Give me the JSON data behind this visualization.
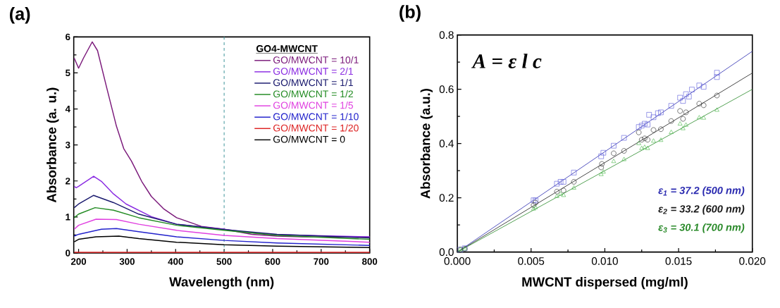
{
  "chart_data": [
    {
      "type": "line",
      "title": "(a)",
      "xlabel": "Wavelength (nm)",
      "ylabel": "Absorbance (a. u.)",
      "legend_title": "GO4-MWCNT",
      "legend": "top right",
      "xlim": [
        190,
        800
      ],
      "ylim": [
        0,
        6
      ],
      "xticks": [
        200,
        300,
        400,
        500,
        600,
        700,
        800
      ],
      "yticks": [
        0,
        1,
        2,
        3,
        4,
        5,
        6
      ],
      "ref_lines": [
        {
          "axis": "x",
          "value": 500,
          "color": "#4a9aa0",
          "line_style": "dashed"
        }
      ],
      "series": [
        {
          "name": "GO/MWCNT = 10/1",
          "color": "#7b1a7b",
          "x": [
            191,
            200,
            210,
            228,
            239,
            257,
            278,
            293,
            309,
            330,
            350,
            376,
            402,
            453,
            500,
            557,
            609,
            660,
            800
          ],
          "values": [
            5.41,
            5.13,
            5.41,
            5.86,
            5.62,
            4.64,
            3.52,
            2.9,
            2.55,
            1.99,
            1.57,
            1.22,
            0.98,
            0.74,
            0.66,
            0.52,
            0.47,
            0.45,
            0.44
          ]
        },
        {
          "name": "GO/MWCNT = 2/1",
          "color": "#8a2be2",
          "x": [
            191,
            195,
            200,
            231,
            247,
            272,
            298,
            350,
            402,
            500,
            557,
            609,
            800
          ],
          "values": [
            1.85,
            1.81,
            1.85,
            2.13,
            1.99,
            1.64,
            1.36,
            1.01,
            0.8,
            0.66,
            0.56,
            0.51,
            0.45
          ]
        },
        {
          "name": "GO/MWCNT = 1/1",
          "color": "#1a1a6e",
          "x": [
            191,
            200,
            231,
            272,
            324,
            402,
            500,
            609,
            800
          ],
          "values": [
            1.26,
            1.36,
            1.6,
            1.4,
            1.08,
            0.8,
            0.65,
            0.52,
            0.42
          ]
        },
        {
          "name": "GO/MWCNT = 1/2",
          "color": "#228b22",
          "x": [
            191,
            200,
            234,
            272,
            324,
            402,
            500,
            609,
            800
          ],
          "values": [
            0.98,
            1.08,
            1.26,
            1.19,
            0.98,
            0.77,
            0.63,
            0.49,
            0.38
          ]
        },
        {
          "name": "GO/MWCNT = 1/5",
          "color": "#e040e0",
          "x": [
            191,
            200,
            236,
            278,
            324,
            402,
            500,
            609,
            800
          ],
          "values": [
            0.66,
            0.77,
            0.94,
            0.93,
            0.8,
            0.63,
            0.49,
            0.4,
            0.3
          ]
        },
        {
          "name": "GO/MWCNT = 1/10",
          "color": "#2222cc",
          "x": [
            191,
            200,
            247,
            278,
            324,
            402,
            500,
            609,
            800
          ],
          "values": [
            0.47,
            0.52,
            0.66,
            0.68,
            0.59,
            0.45,
            0.35,
            0.28,
            0.21
          ]
        },
        {
          "name": "GO/MWCNT = 1/20",
          "color": "#dd2222",
          "x": [
            191,
            800
          ],
          "values": [
            0.02,
            0.02
          ]
        },
        {
          "name": "GO/MWCNT = 0",
          "color": "#000000",
          "x": [
            191,
            200,
            236,
            283,
            324,
            402,
            500,
            609,
            800
          ],
          "values": [
            0.31,
            0.38,
            0.45,
            0.47,
            0.4,
            0.3,
            0.23,
            0.19,
            0.15
          ]
        }
      ]
    },
    {
      "type": "scatter",
      "title": "(b)",
      "xlabel": "MWCNT dispersed (mg/ml)",
      "ylabel": "Absorbance (a.u.)",
      "xlim": [
        0,
        0.02
      ],
      "ylim": [
        0,
        0.8
      ],
      "xticks": [
        {
          "value": 0,
          "label": "0.000"
        },
        {
          "value": 0.005,
          "label": "0.005"
        },
        {
          "value": 0.01,
          "label": "0.010"
        },
        {
          "value": 0.015,
          "label": "0.015"
        },
        {
          "value": 0.02,
          "label": "0.020"
        }
      ],
      "yticks": [
        {
          "value": 0,
          "label": "0.0"
        },
        {
          "value": 0.2,
          "label": "0.2"
        },
        {
          "value": 0.4,
          "label": "0.4"
        },
        {
          "value": 0.6,
          "label": "0.6"
        },
        {
          "value": 0.8,
          "label": "0.8"
        }
      ],
      "annotations": [
        "A = ε l c"
      ],
      "series": [
        {
          "type": "scatter",
          "marker": "square",
          "color": "#6666dd",
          "x": [
            0.0002,
            0.0005,
            0.00517,
            0.0053,
            0.00675,
            0.007,
            0.0072,
            0.0079,
            0.00975,
            0.0099,
            0.0106,
            0.0113,
            0.0123,
            0.0125,
            0.0127,
            0.0129,
            0.013,
            0.0133,
            0.0136,
            0.0138,
            0.0145,
            0.0151,
            0.0153,
            0.0155,
            0.0157,
            0.0159,
            0.0164,
            0.0167,
            0.0176,
            0.0176
          ],
          "values": [
            0.009,
            0.014,
            0.191,
            0.19,
            0.252,
            0.259,
            0.259,
            0.293,
            0.353,
            0.366,
            0.392,
            0.421,
            0.461,
            0.466,
            0.473,
            0.47,
            0.506,
            0.497,
            0.512,
            0.515,
            0.539,
            0.569,
            0.557,
            0.582,
            0.573,
            0.599,
            0.614,
            0.609,
            0.661,
            0.645
          ]
        },
        {
          "type": "scatter",
          "marker": "circle",
          "color": "#333333",
          "x": [
            0.0002,
            0.0005,
            0.00517,
            0.0053,
            0.00675,
            0.0072,
            0.0079,
            0.00975,
            0.0098,
            0.0106,
            0.0113,
            0.0123,
            0.0125,
            0.0127,
            0.0129,
            0.0133,
            0.0138,
            0.0145,
            0.0151,
            0.0153,
            0.0155,
            0.0164,
            0.0167,
            0.0176
          ],
          "values": [
            0.009,
            0.012,
            0.173,
            0.182,
            0.223,
            0.227,
            0.259,
            0.312,
            0.325,
            0.364,
            0.373,
            0.441,
            0.414,
            0.419,
            0.414,
            0.45,
            0.453,
            0.483,
            0.52,
            0.491,
            0.515,
            0.547,
            0.541,
            0.577
          ]
        },
        {
          "type": "scatter",
          "marker": "triangle",
          "color": "#55bb55",
          "x": [
            0.0002,
            0.0005,
            0.00517,
            0.0053,
            0.00675,
            0.007,
            0.0072,
            0.0079,
            0.00975,
            0.0099,
            0.0106,
            0.0113,
            0.0123,
            0.0125,
            0.0127,
            0.0129,
            0.0133,
            0.0138,
            0.0145,
            0.0151,
            0.0153,
            0.0155,
            0.0164,
            0.0167,
            0.0176
          ],
          "values": [
            0.009,
            0.012,
            0.159,
            0.164,
            0.205,
            0.214,
            0.209,
            0.236,
            0.286,
            0.295,
            0.334,
            0.341,
            0.4,
            0.382,
            0.386,
            0.382,
            0.409,
            0.412,
            0.441,
            0.472,
            0.455,
            0.468,
            0.495,
            0.494,
            0.523
          ]
        },
        {
          "type": "line",
          "name": "ε$_{1}$ = 37.2 (500 nm)",
          "color": "#2a2ab0",
          "x": [
            0,
            0.02
          ],
          "values": [
            0,
            0.74
          ]
        },
        {
          "type": "line",
          "name": "ε$_{2}$ = 33.2 (600 nm)",
          "color": "#1a1a1a",
          "x": [
            0,
            0.02
          ],
          "values": [
            0,
            0.66
          ]
        },
        {
          "type": "line",
          "name": "ε$_{3}$ = 30.1 (700 nm)",
          "color": "#2a8a2a",
          "x": [
            0,
            0.02
          ],
          "values": [
            0,
            0.6
          ]
        }
      ]
    }
  ]
}
